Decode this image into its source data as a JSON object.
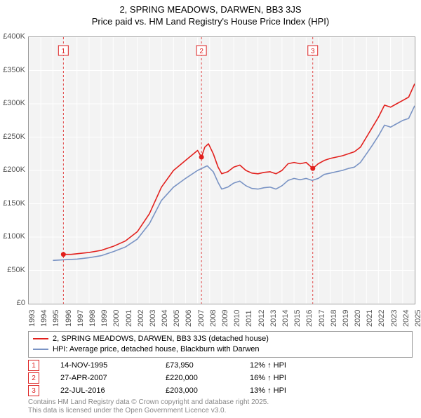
{
  "title_line1": "2, SPRING MEADOWS, DARWEN, BB3 3JS",
  "title_line2": "Price paid vs. HM Land Registry's House Price Index (HPI)",
  "chart": {
    "type": "line",
    "background_color": "#f3f3f3",
    "border_color": "#999999",
    "grid_color": "#ffffff",
    "marker_border_color": "#dd2222",
    "y": {
      "min": 0,
      "max": 400000,
      "step": 50000,
      "labels": [
        "£0",
        "£50K",
        "£100K",
        "£150K",
        "£200K",
        "£250K",
        "£300K",
        "£350K",
        "£400K"
      ]
    },
    "x": {
      "min": 1993,
      "max": 2025,
      "labels": [
        "1993",
        "1994",
        "1995",
        "1996",
        "1997",
        "1998",
        "1999",
        "2000",
        "2001",
        "2002",
        "2003",
        "2004",
        "2005",
        "2006",
        "2007",
        "2008",
        "2009",
        "2010",
        "2011",
        "2012",
        "2013",
        "2014",
        "2015",
        "2016",
        "2017",
        "2018",
        "2019",
        "2020",
        "2021",
        "2022",
        "2023",
        "2024",
        "2025"
      ]
    },
    "series": [
      {
        "name": "2, SPRING MEADOWS, DARWEN, BB3 3JS (detached house)",
        "color": "#e2201d",
        "width": 1.6,
        "data": [
          [
            1995.87,
            73950
          ],
          [
            1996.5,
            74000
          ],
          [
            1997,
            75000
          ],
          [
            1998,
            77000
          ],
          [
            1999,
            80000
          ],
          [
            2000,
            86000
          ],
          [
            2001,
            94000
          ],
          [
            2002,
            108000
          ],
          [
            2003,
            135000
          ],
          [
            2004,
            175000
          ],
          [
            2005,
            200000
          ],
          [
            2006,
            215000
          ],
          [
            2007,
            230000
          ],
          [
            2007.32,
            220000
          ],
          [
            2007.6,
            235000
          ],
          [
            2007.9,
            240000
          ],
          [
            2008.3,
            225000
          ],
          [
            2008.7,
            205000
          ],
          [
            2009,
            195000
          ],
          [
            2009.5,
            198000
          ],
          [
            2010,
            205000
          ],
          [
            2010.5,
            208000
          ],
          [
            2011,
            200000
          ],
          [
            2011.5,
            196000
          ],
          [
            2012,
            195000
          ],
          [
            2012.5,
            197000
          ],
          [
            2013,
            198000
          ],
          [
            2013.5,
            195000
          ],
          [
            2014,
            200000
          ],
          [
            2014.5,
            210000
          ],
          [
            2015,
            212000
          ],
          [
            2015.5,
            210000
          ],
          [
            2016,
            212000
          ],
          [
            2016.55,
            203000
          ],
          [
            2017,
            210000
          ],
          [
            2017.5,
            215000
          ],
          [
            2018,
            218000
          ],
          [
            2018.5,
            220000
          ],
          [
            2019,
            222000
          ],
          [
            2019.5,
            225000
          ],
          [
            2020,
            228000
          ],
          [
            2020.5,
            235000
          ],
          [
            2021,
            250000
          ],
          [
            2021.5,
            265000
          ],
          [
            2022,
            280000
          ],
          [
            2022.5,
            298000
          ],
          [
            2023,
            295000
          ],
          [
            2023.5,
            300000
          ],
          [
            2024,
            305000
          ],
          [
            2024.5,
            310000
          ],
          [
            2025,
            330000
          ]
        ]
      },
      {
        "name": "HPI: Average price, detached house, Blackburn with Darwen",
        "color": "#7993c4",
        "width": 1.6,
        "data": [
          [
            1995,
            65000
          ],
          [
            1996,
            66000
          ],
          [
            1997,
            67000
          ],
          [
            1998,
            69000
          ],
          [
            1999,
            72000
          ],
          [
            2000,
            78000
          ],
          [
            2001,
            85000
          ],
          [
            2002,
            97000
          ],
          [
            2003,
            120000
          ],
          [
            2004,
            155000
          ],
          [
            2005,
            175000
          ],
          [
            2006,
            188000
          ],
          [
            2007,
            200000
          ],
          [
            2007.8,
            207000
          ],
          [
            2008.3,
            198000
          ],
          [
            2008.7,
            182000
          ],
          [
            2009,
            172000
          ],
          [
            2009.5,
            175000
          ],
          [
            2010,
            181000
          ],
          [
            2010.5,
            184000
          ],
          [
            2011,
            177000
          ],
          [
            2011.5,
            173000
          ],
          [
            2012,
            172000
          ],
          [
            2012.5,
            174000
          ],
          [
            2013,
            175000
          ],
          [
            2013.5,
            172000
          ],
          [
            2014,
            177000
          ],
          [
            2014.5,
            185000
          ],
          [
            2015,
            188000
          ],
          [
            2015.5,
            186000
          ],
          [
            2016,
            188000
          ],
          [
            2016.5,
            185000
          ],
          [
            2017,
            188000
          ],
          [
            2017.5,
            194000
          ],
          [
            2018,
            196000
          ],
          [
            2018.5,
            198000
          ],
          [
            2019,
            200000
          ],
          [
            2019.5,
            203000
          ],
          [
            2020,
            205000
          ],
          [
            2020.5,
            212000
          ],
          [
            2021,
            225000
          ],
          [
            2021.5,
            238000
          ],
          [
            2022,
            252000
          ],
          [
            2022.5,
            268000
          ],
          [
            2023,
            265000
          ],
          [
            2023.5,
            270000
          ],
          [
            2024,
            275000
          ],
          [
            2024.5,
            278000
          ],
          [
            2025,
            297000
          ]
        ]
      }
    ],
    "sale_markers": [
      {
        "label": "1",
        "x": 1995.87,
        "y": 73950
      },
      {
        "label": "2",
        "x": 2007.32,
        "y": 220000
      },
      {
        "label": "3",
        "x": 2016.55,
        "y": 203000
      }
    ]
  },
  "legend": {
    "items": [
      {
        "color": "#e2201d",
        "label": "2, SPRING MEADOWS, DARWEN, BB3 3JS (detached house)"
      },
      {
        "color": "#7993c4",
        "label": "HPI: Average price, detached house, Blackburn with Darwen"
      }
    ]
  },
  "sales": [
    {
      "num": "1",
      "date": "14-NOV-1995",
      "price": "£73,950",
      "delta": "12% ↑ HPI"
    },
    {
      "num": "2",
      "date": "27-APR-2007",
      "price": "£220,000",
      "delta": "16% ↑ HPI"
    },
    {
      "num": "3",
      "date": "22-JUL-2016",
      "price": "£203,000",
      "delta": "13% ↑ HPI"
    }
  ],
  "footer_line1": "Contains HM Land Registry data © Crown copyright and database right 2025.",
  "footer_line2": "This data is licensed under the Open Government Licence v3.0."
}
